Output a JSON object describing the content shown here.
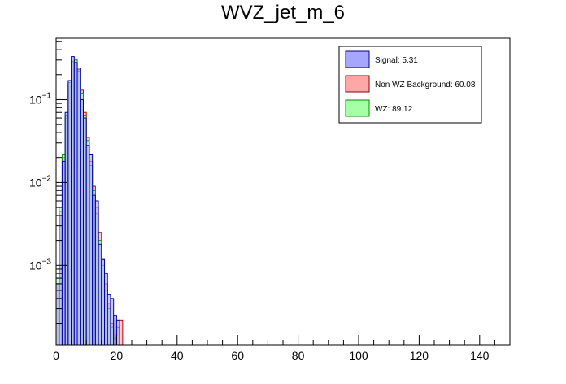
{
  "chart_data": {
    "type": "histogram",
    "title": "WVZ_jet_m_6",
    "xlabel": "",
    "ylabel": "",
    "xlim": [
      0,
      150
    ],
    "ylim": [
      0.00011,
      0.55
    ],
    "yscale": "log",
    "bin_width": 1,
    "x_ticks": [
      0,
      20,
      40,
      60,
      80,
      100,
      120,
      140
    ],
    "x_tick_labels": [
      "0",
      "20",
      "40",
      "60",
      "80",
      "100",
      "120",
      "140"
    ],
    "y_ticks": [
      0.001,
      0.01,
      0.1
    ],
    "y_tick_labels": [
      {
        "base": "10",
        "exp": "−3"
      },
      {
        "base": "10",
        "exp": "−2"
      },
      {
        "base": "10",
        "exp": "−1"
      }
    ],
    "legend": [
      {
        "label": "Signal: 5.31",
        "color": "#a6a6ff",
        "edge": "#00008b"
      },
      {
        "label": "Non WZ Background: 60.08",
        "color": "#ffa6a6",
        "edge": "#8b0000"
      },
      {
        "label": "WZ: 89.12",
        "color": "#a6ffa6",
        "edge": "#008b00"
      }
    ],
    "series": [
      {
        "name": "Non WZ Background",
        "fill": "#ffa6a6",
        "edge": "#c00000",
        "values": [
          0.0006,
          0.0045,
          0.02,
          0.06,
          0.15,
          0.28,
          0.31,
          0.23,
          0.13,
          0.07,
          0.035,
          0.018,
          0.009,
          0.005,
          0.0025,
          0.0012,
          0.0006,
          0.00035,
          0.0002,
          0.00015,
          0.00018,
          0.00022
        ]
      },
      {
        "name": "WZ",
        "fill": "#a6ffa6",
        "edge": "#00a000",
        "values": [
          0.0007,
          0.005,
          0.022,
          0.065,
          0.16,
          0.29,
          0.3,
          0.22,
          0.12,
          0.065,
          0.032,
          0.016,
          0.008,
          0.0042,
          0.002,
          0.001,
          0.0005,
          0.0003,
          0.00018,
          0.00013,
          0.0,
          0.0
        ]
      },
      {
        "name": "Signal",
        "fill": "#a6a6ff",
        "edge": "#0000b0",
        "values": [
          0.0006,
          0.004,
          0.018,
          0.07,
          0.17,
          0.33,
          0.28,
          0.24,
          0.1,
          0.06,
          0.028,
          0.022,
          0.007,
          0.006,
          0.0018,
          0.0012,
          0.0008,
          0.00045,
          0.0004,
          0.00025,
          0.00022,
          0.0
        ]
      }
    ]
  }
}
